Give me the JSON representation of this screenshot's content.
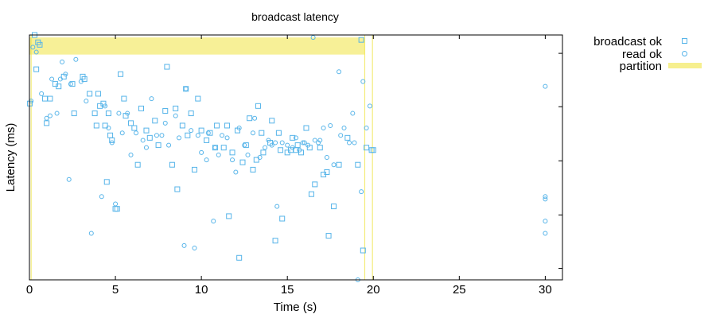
{
  "chart_data": {
    "type": "scatter",
    "title": "broadcast latency",
    "xlabel": "Time (s)",
    "ylabel": "Latency (ms)",
    "xlim": [
      0,
      31
    ],
    "ylim": [
      0,
      1
    ],
    "x_ticks": [
      0,
      5,
      10,
      15,
      20,
      25,
      30
    ],
    "y_ticks_unlabeled": [
      0.047,
      0.265,
      0.486,
      0.707,
      0.925
    ],
    "legend_position": "outside-top-right",
    "colors": {
      "points": "#56b4e9",
      "partition": "#f0e442"
    },
    "series": [
      {
        "name": "broadcast ok",
        "marker": "square",
        "points": [
          [
            0.02,
            0.72
          ],
          [
            0.3,
            1.0
          ],
          [
            0.4,
            0.86
          ],
          [
            0.5,
            0.97
          ],
          [
            0.6,
            0.96
          ],
          [
            0.9,
            0.74
          ],
          [
            1.0,
            0.64
          ],
          [
            1.2,
            0.74
          ],
          [
            1.5,
            0.8
          ],
          [
            1.7,
            0.79
          ],
          [
            2.0,
            0.83
          ],
          [
            2.5,
            0.8
          ],
          [
            2.6,
            0.68
          ],
          [
            3.1,
            0.83
          ],
          [
            3.2,
            0.82
          ],
          [
            3.5,
            0.76
          ],
          [
            3.8,
            0.68
          ],
          [
            3.9,
            0.63
          ],
          [
            4.0,
            0.76
          ],
          [
            4.1,
            0.71
          ],
          [
            4.3,
            0.72
          ],
          [
            4.4,
            0.63
          ],
          [
            4.5,
            0.4
          ],
          [
            4.6,
            0.68
          ],
          [
            4.7,
            0.59
          ],
          [
            4.8,
            0.57
          ],
          [
            5.0,
            0.29
          ],
          [
            5.1,
            0.29
          ],
          [
            5.3,
            0.84
          ],
          [
            5.5,
            0.74
          ],
          [
            5.6,
            0.67
          ],
          [
            5.9,
            0.64
          ],
          [
            6.1,
            0.62
          ],
          [
            6.3,
            0.47
          ],
          [
            6.5,
            0.7
          ],
          [
            6.8,
            0.61
          ],
          [
            7.0,
            0.58
          ],
          [
            7.3,
            0.65
          ],
          [
            7.5,
            0.55
          ],
          [
            7.9,
            0.69
          ],
          [
            8.0,
            0.87
          ],
          [
            8.3,
            0.47
          ],
          [
            8.5,
            0.7
          ],
          [
            8.6,
            0.37
          ],
          [
            8.9,
            0.63
          ],
          [
            9.1,
            0.78
          ],
          [
            9.2,
            0.59
          ],
          [
            9.4,
            0.68
          ],
          [
            9.6,
            0.45
          ],
          [
            9.8,
            0.74
          ],
          [
            10.0,
            0.61
          ],
          [
            10.3,
            0.57
          ],
          [
            10.5,
            0.6
          ],
          [
            10.8,
            0.54
          ],
          [
            10.9,
            0.63
          ],
          [
            11.3,
            0.54
          ],
          [
            11.5,
            0.63
          ],
          [
            11.6,
            0.26
          ],
          [
            11.8,
            0.52
          ],
          [
            12.1,
            0.61
          ],
          [
            12.2,
            0.09
          ],
          [
            12.4,
            0.48
          ],
          [
            12.6,
            0.55
          ],
          [
            12.8,
            0.66
          ],
          [
            13.0,
            0.45
          ],
          [
            13.2,
            0.49
          ],
          [
            13.3,
            0.71
          ],
          [
            13.5,
            0.6
          ],
          [
            13.6,
            0.52
          ],
          [
            14.0,
            0.56
          ],
          [
            14.1,
            0.65
          ],
          [
            14.3,
            0.16
          ],
          [
            14.5,
            0.6
          ],
          [
            14.6,
            0.53
          ],
          [
            14.7,
            0.25
          ],
          [
            15.0,
            0.52
          ],
          [
            15.2,
            0.53
          ],
          [
            15.3,
            0.58
          ],
          [
            15.5,
            0.53
          ],
          [
            15.6,
            0.55
          ],
          [
            15.8,
            0.52
          ],
          [
            16.1,
            0.62
          ],
          [
            16.3,
            0.54
          ],
          [
            16.4,
            0.35
          ],
          [
            16.6,
            0.39
          ],
          [
            16.9,
            0.54
          ],
          [
            17.1,
            0.43
          ],
          [
            17.3,
            0.44
          ],
          [
            17.4,
            0.18
          ],
          [
            17.7,
            0.3
          ],
          [
            18.0,
            0.47
          ],
          [
            18.5,
            0.58
          ],
          [
            19.1,
            0.47
          ],
          [
            19.3,
            0.98
          ],
          [
            19.4,
            0.12
          ],
          [
            19.6,
            0.54
          ],
          [
            19.9,
            0.53
          ],
          [
            20.0,
            0.53
          ]
        ]
      },
      {
        "name": "read ok",
        "marker": "circle",
        "points": [
          [
            0.1,
            0.73
          ],
          [
            0.2,
            0.95
          ],
          [
            0.4,
            0.93
          ],
          [
            0.7,
            0.76
          ],
          [
            1.0,
            0.66
          ],
          [
            1.2,
            0.67
          ],
          [
            1.3,
            0.82
          ],
          [
            1.6,
            0.68
          ],
          [
            1.8,
            0.82
          ],
          [
            1.9,
            0.89
          ],
          [
            2.1,
            0.84
          ],
          [
            2.3,
            0.41
          ],
          [
            2.4,
            0.8
          ],
          [
            2.7,
            0.9
          ],
          [
            3.0,
            0.81
          ],
          [
            3.3,
            0.73
          ],
          [
            3.6,
            0.19
          ],
          [
            4.2,
            0.34
          ],
          [
            4.4,
            0.71
          ],
          [
            4.6,
            0.62
          ],
          [
            4.8,
            0.56
          ],
          [
            5.0,
            0.31
          ],
          [
            5.2,
            0.68
          ],
          [
            5.4,
            0.6
          ],
          [
            5.7,
            0.68
          ],
          [
            5.9,
            0.51
          ],
          [
            6.2,
            0.6
          ],
          [
            6.6,
            0.57
          ],
          [
            6.8,
            0.54
          ],
          [
            7.1,
            0.74
          ],
          [
            7.4,
            0.59
          ],
          [
            7.7,
            0.59
          ],
          [
            7.9,
            0.64
          ],
          [
            8.1,
            0.55
          ],
          [
            8.5,
            0.67
          ],
          [
            8.7,
            0.58
          ],
          [
            9.0,
            0.14
          ],
          [
            9.1,
            0.78
          ],
          [
            9.4,
            0.61
          ],
          [
            9.6,
            0.13
          ],
          [
            9.8,
            0.59
          ],
          [
            10.0,
            0.52
          ],
          [
            10.3,
            0.49
          ],
          [
            10.4,
            0.6
          ],
          [
            10.7,
            0.24
          ],
          [
            10.8,
            0.54
          ],
          [
            11.0,
            0.51
          ],
          [
            11.2,
            0.59
          ],
          [
            11.5,
            0.58
          ],
          [
            11.8,
            0.49
          ],
          [
            12.0,
            0.44
          ],
          [
            12.2,
            0.62
          ],
          [
            12.5,
            0.55
          ],
          [
            12.7,
            0.51
          ],
          [
            13.0,
            0.6
          ],
          [
            13.1,
            0.66
          ],
          [
            13.4,
            0.5
          ],
          [
            13.7,
            0.54
          ],
          [
            13.9,
            0.57
          ],
          [
            14.1,
            0.55
          ],
          [
            14.3,
            0.56
          ],
          [
            14.4,
            0.3
          ],
          [
            14.7,
            0.56
          ],
          [
            15.0,
            0.55
          ],
          [
            15.3,
            0.54
          ],
          [
            15.5,
            0.58
          ],
          [
            15.7,
            0.53
          ],
          [
            15.9,
            0.56
          ],
          [
            16.0,
            0.56
          ],
          [
            16.2,
            0.55
          ],
          [
            16.5,
            0.99
          ],
          [
            16.6,
            0.57
          ],
          [
            16.8,
            0.56
          ],
          [
            16.9,
            0.57
          ],
          [
            17.1,
            0.62
          ],
          [
            17.3,
            0.5
          ],
          [
            17.5,
            0.63
          ],
          [
            17.7,
            0.47
          ],
          [
            18.0,
            0.85
          ],
          [
            18.1,
            0.59
          ],
          [
            18.3,
            0.62
          ],
          [
            18.6,
            0.56
          ],
          [
            18.8,
            0.68
          ],
          [
            18.9,
            0.56
          ],
          [
            19.1,
            0.0
          ],
          [
            19.3,
            0.36
          ],
          [
            19.4,
            0.81
          ],
          [
            19.6,
            0.62
          ],
          [
            19.8,
            0.71
          ],
          [
            30.0,
            0.79
          ],
          [
            30.0,
            0.34
          ],
          [
            30.0,
            0.33
          ],
          [
            30.0,
            0.24
          ],
          [
            30.0,
            0.19
          ]
        ]
      }
    ],
    "partitions": {
      "name": "partition",
      "regions": [
        {
          "x_start": 0.0,
          "x_end": 19.5,
          "y_from": 0.92,
          "y_to": 0.99
        }
      ],
      "lines": [
        0.1,
        19.5,
        19.95
      ]
    }
  }
}
